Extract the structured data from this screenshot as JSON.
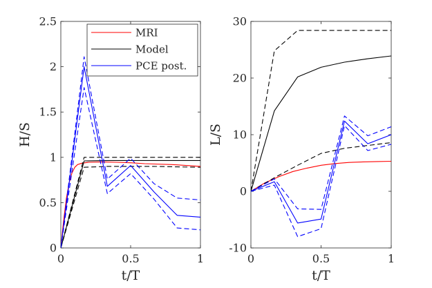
{
  "chart_data": [
    {
      "type": "line",
      "xlabel": "t/T",
      "ylabel": "H/S",
      "xlim": [
        0,
        1
      ],
      "ylim": [
        0,
        2.5
      ],
      "xticks": [
        "0",
        "0.5",
        "1"
      ],
      "yticks": [
        "0",
        "0.5",
        "1",
        "1.5",
        "2",
        "2.5"
      ],
      "xtick_values": [
        0,
        0.5,
        1
      ],
      "ytick_values": [
        0,
        0.5,
        1,
        1.5,
        2,
        2.5
      ],
      "grid": false,
      "legend": {
        "placement": "top-right",
        "entries": [
          {
            "label": "MRI",
            "color": "#ff0000"
          },
          {
            "label": "Model",
            "color": "#000000"
          },
          {
            "label": "PCE post.",
            "color": "#0000ff"
          }
        ]
      },
      "series": [
        {
          "name": "MRI",
          "color": "#ff0000",
          "style": "solid",
          "x": [
            0,
            0.02,
            0.04,
            0.06,
            0.08,
            0.1,
            0.12,
            0.15,
            0.2,
            0.3,
            0.4,
            0.5,
            0.6,
            0.8,
            1.0
          ],
          "y": [
            0,
            0.3,
            0.55,
            0.72,
            0.83,
            0.89,
            0.92,
            0.935,
            0.945,
            0.95,
            0.945,
            0.94,
            0.93,
            0.92,
            0.9
          ]
        },
        {
          "name": "Model",
          "color": "#000000",
          "style": "solid",
          "x": [
            0,
            0.167,
            0.333,
            0.5,
            0.667,
            0.833,
            1.0
          ],
          "y": [
            0,
            0.96,
            0.965,
            0.965,
            0.965,
            0.965,
            0.965
          ]
        },
        {
          "color": "#000000",
          "style": "dashed",
          "x": [
            0,
            0.167,
            0.333,
            0.5,
            0.667,
            0.833,
            1.0
          ],
          "y": [
            0,
            1.0,
            1.0,
            1.0,
            1.0,
            1.0,
            1.0
          ]
        },
        {
          "color": "#000000",
          "style": "dashed",
          "x": [
            0,
            0.167,
            0.333,
            0.5,
            0.667,
            0.833,
            1.0
          ],
          "y": [
            0,
            0.89,
            0.9,
            0.9,
            0.9,
            0.895,
            0.89
          ]
        },
        {
          "name": "PCE post.",
          "color": "#0000ff",
          "style": "solid",
          "x": [
            0,
            0.167,
            0.333,
            0.5,
            0.667,
            0.833,
            1.0
          ],
          "y": [
            0,
            2.0,
            0.68,
            0.91,
            0.62,
            0.36,
            0.34
          ]
        },
        {
          "color": "#0000ff",
          "style": "dashed",
          "x": [
            0,
            0.167,
            0.333,
            0.5,
            0.667,
            0.833,
            1.0
          ],
          "y": [
            0,
            2.11,
            0.76,
            0.99,
            0.71,
            0.55,
            0.53
          ]
        },
        {
          "color": "#0000ff",
          "style": "dashed",
          "x": [
            0,
            0.167,
            0.333,
            0.5,
            0.667,
            0.833,
            1.0
          ],
          "y": [
            0,
            1.77,
            0.6,
            0.82,
            0.54,
            0.22,
            0.2
          ]
        }
      ]
    },
    {
      "type": "line",
      "xlabel": "t/T",
      "ylabel": "L/S",
      "xlim": [
        0,
        1
      ],
      "ylim": [
        -10,
        30
      ],
      "xticks": [
        "0",
        "0.5",
        "1"
      ],
      "yticks": [
        "-10",
        "0",
        "10",
        "20",
        "30"
      ],
      "xtick_values": [
        0,
        0.5,
        1
      ],
      "ytick_values": [
        -10,
        0,
        10,
        20,
        30
      ],
      "grid": false,
      "series": [
        {
          "name": "MRI",
          "color": "#ff0000",
          "style": "solid",
          "x": [
            0,
            0.1,
            0.2,
            0.3,
            0.4,
            0.5,
            0.6,
            0.7,
            0.8,
            0.9,
            1.0
          ],
          "y": [
            0,
            1.5,
            2.6,
            3.5,
            4.1,
            4.6,
            4.9,
            5.1,
            5.2,
            5.25,
            5.3
          ]
        },
        {
          "name": "Model",
          "color": "#000000",
          "style": "solid",
          "x": [
            0,
            0.167,
            0.333,
            0.5,
            0.667,
            0.833,
            1.0
          ],
          "y": [
            0,
            14.2,
            20.2,
            21.9,
            22.8,
            23.4,
            23.9
          ]
        },
        {
          "color": "#000000",
          "style": "dashed",
          "x": [
            0,
            0.167,
            0.333,
            0.5,
            0.667,
            0.833,
            1.0
          ],
          "y": [
            0,
            24.8,
            28.4,
            28.4,
            28.4,
            28.4,
            28.4
          ]
        },
        {
          "color": "#000000",
          "style": "dashed",
          "x": [
            0,
            0.167,
            0.333,
            0.5,
            0.667,
            0.833,
            1.0
          ],
          "y": [
            0,
            2.4,
            4.6,
            6.7,
            7.6,
            8.1,
            8.6
          ]
        },
        {
          "name": "PCE post.",
          "color": "#0000ff",
          "style": "solid",
          "x": [
            0,
            0.167,
            0.333,
            0.5,
            0.667,
            0.833,
            1.0
          ],
          "y": [
            0,
            1.7,
            -5.6,
            -4.9,
            12.4,
            8.4,
            10.0
          ]
        },
        {
          "color": "#0000ff",
          "style": "dashed",
          "x": [
            0,
            0.167,
            0.333,
            0.5,
            0.667,
            0.833,
            1.0
          ],
          "y": [
            0,
            2.2,
            -3.1,
            -3.2,
            13.3,
            9.8,
            11.4
          ]
        },
        {
          "color": "#0000ff",
          "style": "dashed",
          "x": [
            0,
            0.167,
            0.333,
            0.5,
            0.667,
            0.833,
            1.0
          ],
          "y": [
            0,
            1.1,
            -8.0,
            -6.6,
            11.6,
            7.2,
            8.3
          ]
        }
      ]
    }
  ]
}
